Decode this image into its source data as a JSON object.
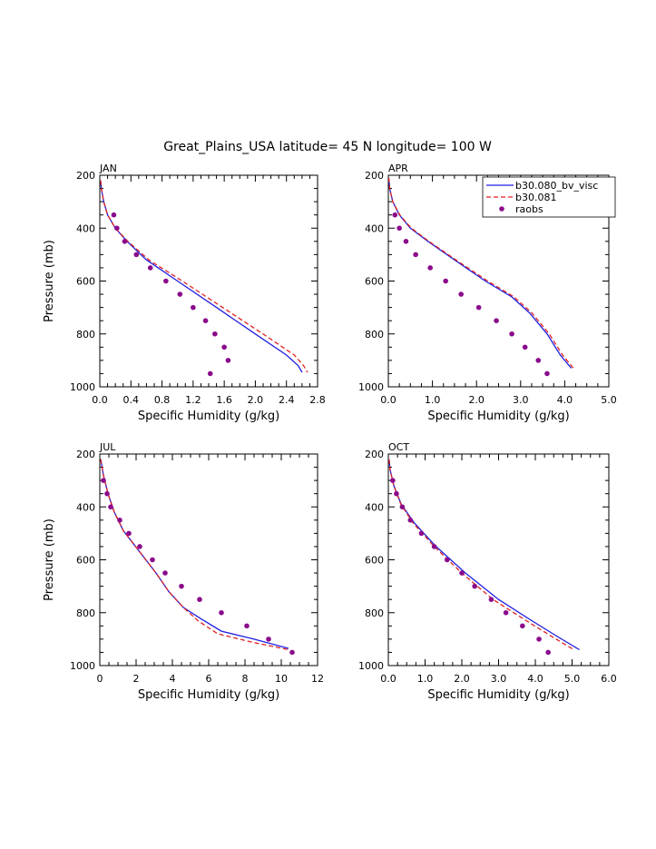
{
  "title": "Great_Plains_USA  latitude= 45 N longitude= 100 W",
  "legend": {
    "position": "top-right of APR panel",
    "entries": [
      {
        "label": "b30.080_bv_visc",
        "color": "#1f1fe0",
        "style": "solid line"
      },
      {
        "label": "b30.081",
        "color": "#e01f1f",
        "style": "dashed line"
      },
      {
        "label": "raobs",
        "color": "#8b0a8b",
        "style": "dots"
      }
    ]
  },
  "chart_data": [
    {
      "type": "line",
      "panel_label": "JAN",
      "xlabel": "Specific Humidity (g/kg)",
      "ylabel": "Pressure (mb)",
      "xlim": [
        0,
        2.8
      ],
      "ylim": [
        1000,
        200
      ],
      "y_inverted": true,
      "x_ticks": [
        "0.0",
        "0.4",
        "0.8",
        "1.2",
        "1.6",
        "2.0",
        "2.4",
        "2.8"
      ],
      "y_ticks": [
        "200",
        "400",
        "600",
        "800",
        "1000"
      ],
      "series": [
        {
          "name": "b30.080_bv_visc",
          "color": "#1f1fe0",
          "dash": "none",
          "x": [
            0.01,
            0.02,
            0.05,
            0.1,
            0.2,
            0.35,
            0.6,
            1.0,
            1.5,
            2.0,
            2.4,
            2.55,
            2.6
          ],
          "y": [
            220,
            250,
            300,
            350,
            400,
            450,
            520,
            600,
            700,
            800,
            880,
            920,
            945
          ]
        },
        {
          "name": "b30.081",
          "color": "#e01f1f",
          "dash": "5,3",
          "x": [
            0.01,
            0.02,
            0.05,
            0.1,
            0.2,
            0.36,
            0.63,
            1.06,
            1.58,
            2.1,
            2.5,
            2.62,
            2.67
          ],
          "y": [
            220,
            250,
            300,
            350,
            400,
            450,
            520,
            600,
            700,
            800,
            880,
            920,
            945
          ]
        },
        {
          "name": "raobs",
          "color": "#8b0a8b",
          "marker": "dot",
          "x": [
            0.18,
            0.22,
            0.32,
            0.47,
            0.65,
            0.85,
            1.03,
            1.2,
            1.36,
            1.48,
            1.6,
            1.65,
            1.42
          ],
          "y": [
            350,
            400,
            450,
            500,
            550,
            600,
            650,
            700,
            750,
            800,
            850,
            900,
            950
          ]
        }
      ]
    },
    {
      "type": "line",
      "panel_label": "APR",
      "xlabel": "Specific Humidity (g/kg)",
      "ylabel": "",
      "xlim": [
        0,
        5
      ],
      "ylim": [
        1000,
        200
      ],
      "y_inverted": true,
      "x_ticks": [
        "0.0",
        "1.0",
        "2.0",
        "3.0",
        "4.0",
        "5.0"
      ],
      "y_ticks": [
        "200",
        "400",
        "600",
        "800",
        "1000"
      ],
      "series": [
        {
          "name": "b30.080_bv_visc",
          "color": "#1f1fe0",
          "dash": "none",
          "x": [
            0.01,
            0.03,
            0.1,
            0.25,
            0.5,
            0.9,
            1.5,
            2.2,
            2.8,
            3.2,
            3.6,
            3.9,
            4.15
          ],
          "y": [
            210,
            250,
            300,
            350,
            400,
            450,
            520,
            600,
            660,
            720,
            800,
            880,
            930
          ]
        },
        {
          "name": "b30.081",
          "color": "#e01f1f",
          "dash": "5,3",
          "x": [
            0.01,
            0.03,
            0.1,
            0.26,
            0.52,
            0.92,
            1.53,
            2.25,
            2.85,
            3.25,
            3.65,
            3.95,
            4.2
          ],
          "y": [
            210,
            250,
            300,
            350,
            400,
            450,
            520,
            600,
            660,
            720,
            800,
            880,
            930
          ]
        },
        {
          "name": "raobs",
          "color": "#8b0a8b",
          "marker": "dot",
          "x": [
            0.15,
            0.25,
            0.4,
            0.62,
            0.95,
            1.3,
            1.65,
            2.05,
            2.45,
            2.8,
            3.1,
            3.4,
            3.6
          ],
          "y": [
            350,
            400,
            450,
            500,
            550,
            600,
            650,
            700,
            750,
            800,
            850,
            900,
            950
          ]
        }
      ]
    },
    {
      "type": "line",
      "panel_label": "JUL",
      "xlabel": "Specific Humidity (g/kg)",
      "ylabel": "Pressure (mb)",
      "xlim": [
        0,
        12
      ],
      "ylim": [
        1000,
        200
      ],
      "y_inverted": true,
      "x_ticks": [
        "0",
        "2",
        "4",
        "6",
        "8",
        "10",
        "12"
      ],
      "y_ticks": [
        "200",
        "400",
        "600",
        "800",
        "1000"
      ],
      "series": [
        {
          "name": "b30.080_bv_visc",
          "color": "#1f1fe0",
          "dash": "none",
          "x": [
            0.05,
            0.2,
            0.45,
            0.8,
            1.3,
            2.2,
            3.1,
            3.8,
            4.6,
            5.5,
            6.7,
            8.5,
            10.4
          ],
          "y": [
            220,
            280,
            350,
            420,
            490,
            570,
            650,
            720,
            780,
            820,
            870,
            900,
            935
          ]
        },
        {
          "name": "b30.081",
          "color": "#e01f1f",
          "dash": "5,3",
          "x": [
            0.05,
            0.2,
            0.45,
            0.8,
            1.3,
            2.2,
            3.1,
            3.8,
            4.6,
            5.4,
            6.5,
            8.3,
            10.4
          ],
          "y": [
            220,
            280,
            350,
            420,
            490,
            570,
            650,
            720,
            780,
            830,
            880,
            910,
            940
          ]
        },
        {
          "name": "raobs",
          "color": "#8b0a8b",
          "marker": "dot",
          "x": [
            0.2,
            0.4,
            0.6,
            1.1,
            1.6,
            2.2,
            2.9,
            3.6,
            4.5,
            5.5,
            6.7,
            8.1,
            9.3,
            10.6
          ],
          "y": [
            300,
            350,
            400,
            450,
            500,
            550,
            600,
            650,
            700,
            750,
            800,
            850,
            900,
            950
          ]
        }
      ]
    },
    {
      "type": "line",
      "panel_label": "OCT",
      "xlabel": "Specific Humidity (g/kg)",
      "ylabel": "",
      "xlim": [
        0,
        6
      ],
      "ylim": [
        1000,
        200
      ],
      "y_inverted": true,
      "x_ticks": [
        "0.0",
        "1.0",
        "2.0",
        "3.0",
        "4.0",
        "5.0",
        "6.0"
      ],
      "y_ticks": [
        "200",
        "400",
        "600",
        "800",
        "1000"
      ],
      "series": [
        {
          "name": "b30.080_bv_visc",
          "color": "#1f1fe0",
          "dash": "none",
          "x": [
            0.02,
            0.05,
            0.15,
            0.35,
            0.7,
            1.3,
            2.1,
            3.0,
            3.9,
            4.6,
            5.2
          ],
          "y": [
            220,
            260,
            320,
            390,
            460,
            550,
            650,
            750,
            830,
            890,
            940
          ]
        },
        {
          "name": "b30.081",
          "color": "#e01f1f",
          "dash": "5,3",
          "x": [
            0.02,
            0.05,
            0.15,
            0.34,
            0.67,
            1.25,
            2.0,
            2.85,
            3.75,
            4.45,
            5.05
          ],
          "y": [
            220,
            260,
            320,
            390,
            460,
            550,
            650,
            750,
            830,
            890,
            940
          ]
        },
        {
          "name": "raobs",
          "color": "#8b0a8b",
          "marker": "dot",
          "x": [
            0.12,
            0.22,
            0.38,
            0.6,
            0.9,
            1.25,
            1.6,
            2.0,
            2.35,
            2.8,
            3.2,
            3.65,
            4.1,
            4.35
          ],
          "y": [
            300,
            350,
            400,
            450,
            500,
            550,
            600,
            650,
            700,
            750,
            800,
            850,
            900,
            950
          ]
        }
      ]
    }
  ]
}
